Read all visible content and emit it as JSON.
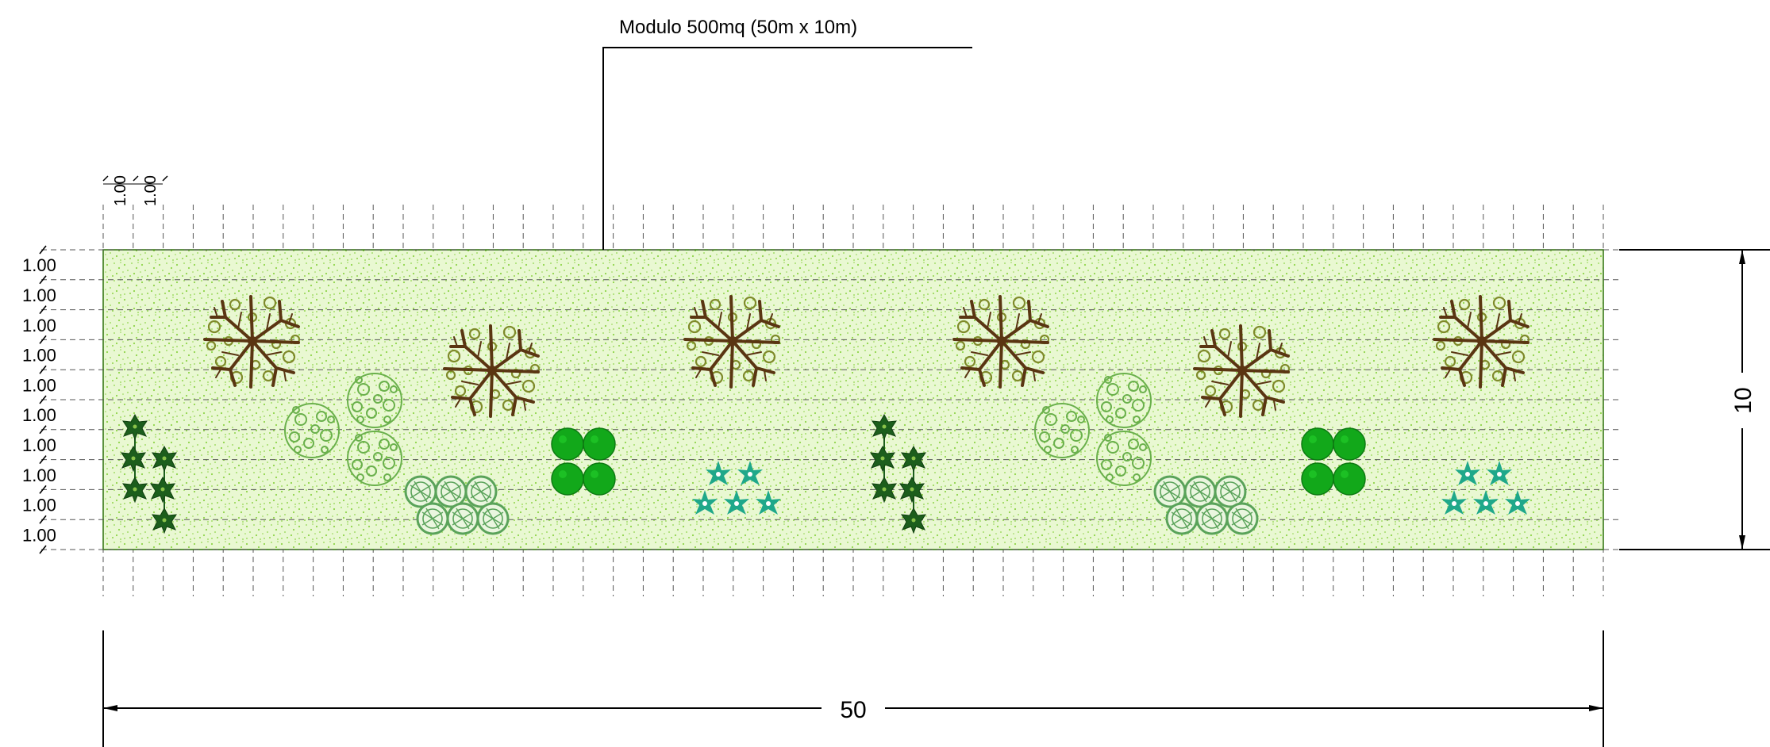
{
  "title_label": "Modulo 500mq (50m x 10m)",
  "grid_spacing_label": "1.00",
  "row_count": 10,
  "column_count": 50,
  "row_labels": [
    "1.00",
    "1.00",
    "1.00",
    "1.00",
    "1.00",
    "1.00",
    "1.00",
    "1.00",
    "1.00",
    "1.00"
  ],
  "column_labels": [
    "1.00",
    "1.00"
  ],
  "width_dimension": "50",
  "height_dimension": "10",
  "colors": {
    "lawn_fill": "#e9f8d2",
    "lawn_speckle": "#8fd44a",
    "lawn_border": "#3a7a1a",
    "tree_branch": "#5a3512",
    "tree_foliage": "#7f8a2a",
    "shrub_round": "#6ab04c",
    "shrub_ring": "#5aa35a",
    "bush_solid": "#12a81a",
    "star_plant": "#1fa88a",
    "climber": "#1c5e1c",
    "grid_line": "#555555",
    "dimension_line": "#000000"
  },
  "plants": [
    {
      "icon": "deciduous-tree-icon",
      "count": 6
    },
    {
      "icon": "round-shrub-cluster-icon",
      "count": 2
    },
    {
      "icon": "ring-shrub-group-icon",
      "count": 2
    },
    {
      "icon": "solid-bush-group-icon",
      "count": 2
    },
    {
      "icon": "star-plant-group-icon",
      "count": 2
    },
    {
      "icon": "climbing-plant-icon",
      "count": 2
    }
  ]
}
